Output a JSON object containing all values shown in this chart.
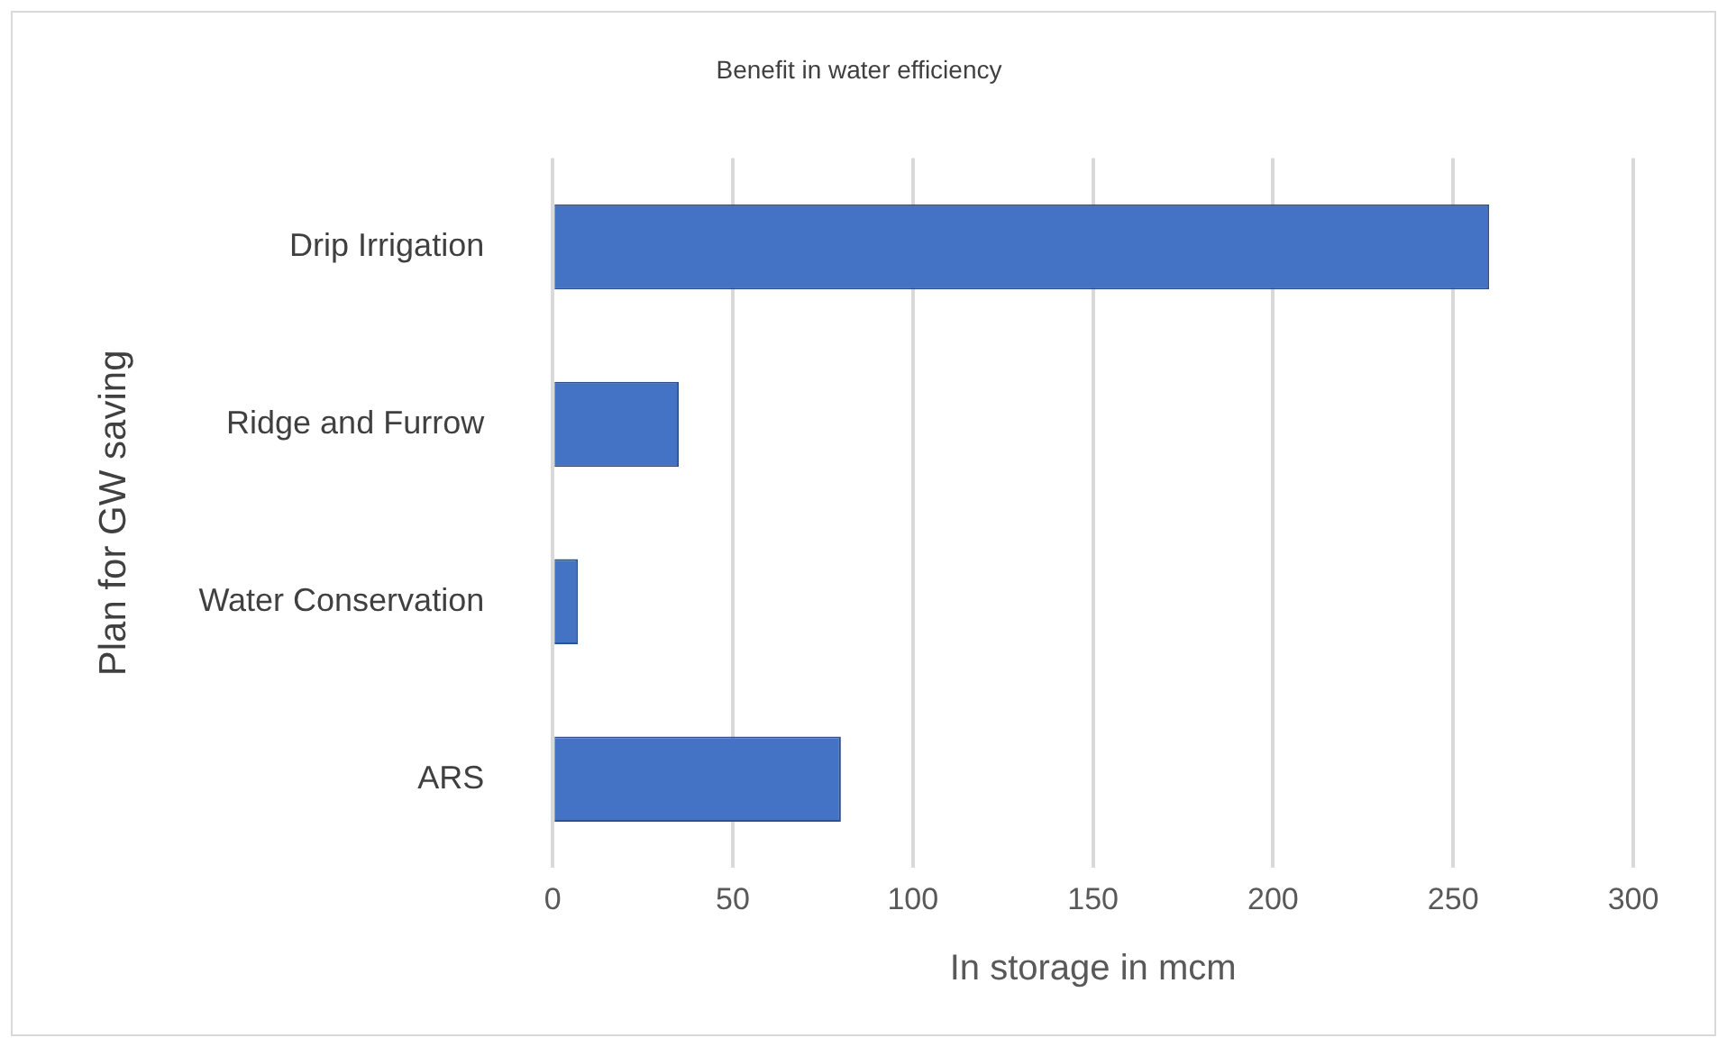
{
  "chart_data": {
    "type": "bar",
    "orientation": "horizontal",
    "title": "Benefit in water efficiency",
    "xlabel": "In storage in mcm",
    "ylabel": "Plan for GW saving",
    "categories": [
      "Drip Irrigation",
      "Ridge and Furrow",
      "Water Conservation",
      "ARS"
    ],
    "values": [
      260,
      35,
      7,
      80
    ],
    "color": "#4472c4",
    "xlim": [
      0,
      300
    ],
    "xticks": [
      0,
      50,
      100,
      150,
      200,
      250,
      300
    ],
    "grid": "x"
  }
}
